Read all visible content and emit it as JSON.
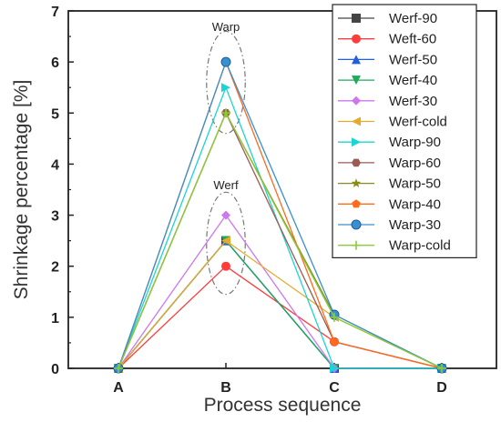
{
  "chart_data": {
    "type": "line",
    "title": "",
    "xlabel": "Process sequence",
    "ylabel": "Shrinkage percentage [%]",
    "categories": [
      "A",
      "B",
      "C",
      "D"
    ],
    "ylim": [
      0,
      7
    ],
    "yticks": [
      0,
      1,
      2,
      3,
      4,
      5,
      6,
      7
    ],
    "grid": false,
    "legend_position": "top-right",
    "annotations": [
      {
        "text": "Warp",
        "x": "B",
        "y": 6.7
      },
      {
        "text": "Werf",
        "x": "B",
        "y": 3.6
      }
    ],
    "annotation_ellipses": [
      {
        "x": "B",
        "y": 5.6,
        "rx_cat": 0.18,
        "ry": 1.0
      },
      {
        "x": "B",
        "y": 2.45,
        "rx_cat": 0.18,
        "ry": 1.0
      }
    ],
    "series": [
      {
        "name": "Werf-90",
        "values": [
          0,
          2.5,
          0,
          0
        ],
        "color": "#444444",
        "marker": "square"
      },
      {
        "name": "Weft-60",
        "values": [
          0,
          2.0,
          0.52,
          0
        ],
        "color": "#ff3b3b",
        "marker": "circle"
      },
      {
        "name": "Werf-50",
        "values": [
          0,
          2.5,
          0,
          0
        ],
        "color": "#1f5fe0",
        "marker": "triangle-up"
      },
      {
        "name": "Werf-40",
        "values": [
          0,
          2.5,
          0,
          0
        ],
        "color": "#1daa5c",
        "marker": "triangle-down"
      },
      {
        "name": "Werf-30",
        "values": [
          0,
          3.0,
          0,
          0
        ],
        "color": "#cc77ee",
        "marker": "diamond"
      },
      {
        "name": "Werf-cold",
        "values": [
          0,
          2.5,
          1.0,
          0
        ],
        "color": "#e8a92a",
        "marker": "triangle-left"
      },
      {
        "name": "Warp-90",
        "values": [
          0,
          5.5,
          0,
          0
        ],
        "color": "#1bd4d4",
        "marker": "triangle-right"
      },
      {
        "name": "Warp-60",
        "values": [
          0,
          5.0,
          0.52,
          0
        ],
        "color": "#9c5a52",
        "marker": "hexagon"
      },
      {
        "name": "Warp-50",
        "values": [
          0,
          5.0,
          1.05,
          0
        ],
        "color": "#8a8a1a",
        "marker": "star"
      },
      {
        "name": "Warp-40",
        "values": [
          0,
          6.0,
          0.52,
          0
        ],
        "color": "#ff6a1a",
        "marker": "pentagon"
      },
      {
        "name": "Warp-30",
        "values": [
          0,
          6.0,
          1.05,
          0
        ],
        "color": "#3a8fd0",
        "marker": "sphere"
      },
      {
        "name": "Warp-cold",
        "values": [
          0,
          5.0,
          1.0,
          0
        ],
        "color": "#8acc3a",
        "marker": "plus"
      }
    ]
  }
}
